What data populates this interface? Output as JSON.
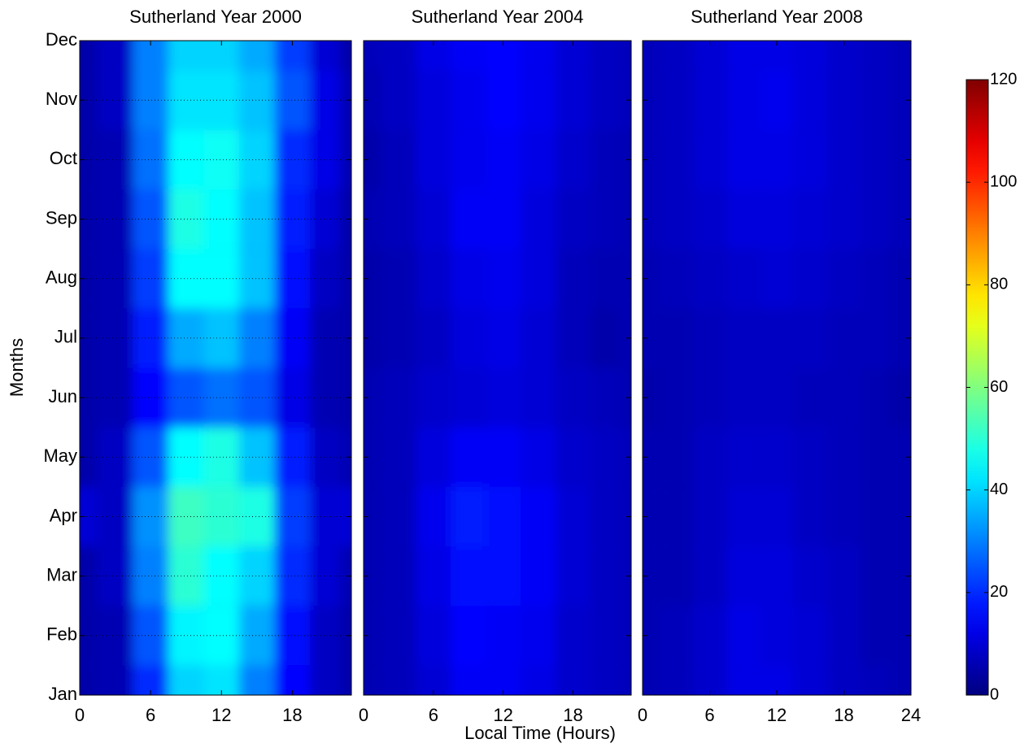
{
  "chart_data": {
    "type": "contour",
    "xlabel": "Local Time (Hours)",
    "ylabel": "Months",
    "x": [
      0,
      3,
      6,
      9,
      12,
      15,
      18,
      21,
      23
    ],
    "y": [
      "Jan",
      "Feb",
      "Mar",
      "Apr",
      "May",
      "Jun",
      "Jul",
      "Aug",
      "Sep",
      "Oct",
      "Nov",
      "Dec"
    ],
    "colormap": "jet",
    "zlim": [
      0,
      120
    ],
    "zticks": [
      0,
      20,
      40,
      60,
      80,
      100,
      120
    ],
    "grid": true,
    "panels": [
      {
        "title": "Sutherland Year 2000",
        "xlim": [
          0,
          23
        ],
        "xticks": [
          0,
          6,
          12,
          18
        ],
        "values": [
          [
            5,
            6,
            20,
            40,
            42,
            30,
            15,
            8,
            5
          ],
          [
            5,
            6,
            25,
            44,
            45,
            35,
            16,
            8,
            5
          ],
          [
            5,
            8,
            30,
            50,
            45,
            40,
            20,
            10,
            6
          ],
          [
            10,
            8,
            32,
            52,
            50,
            48,
            22,
            10,
            10
          ],
          [
            5,
            8,
            25,
            45,
            48,
            38,
            18,
            8,
            6
          ],
          [
            5,
            6,
            15,
            25,
            28,
            25,
            12,
            6,
            5
          ],
          [
            5,
            6,
            18,
            35,
            38,
            30,
            14,
            6,
            5
          ],
          [
            5,
            6,
            22,
            45,
            45,
            38,
            16,
            8,
            5
          ],
          [
            5,
            6,
            25,
            48,
            45,
            38,
            18,
            10,
            5
          ],
          [
            5,
            6,
            28,
            45,
            46,
            40,
            20,
            12,
            6
          ],
          [
            5,
            8,
            30,
            42,
            42,
            38,
            25,
            12,
            6
          ],
          [
            5,
            8,
            30,
            40,
            40,
            35,
            22,
            10,
            5
          ]
        ]
      },
      {
        "title": "Sutherland Year 2004",
        "xlim": [
          0,
          23
        ],
        "xticks": [
          0,
          6,
          12,
          18
        ],
        "values": [
          [
            6,
            7,
            10,
            14,
            14,
            12,
            9,
            8,
            7
          ],
          [
            6,
            7,
            11,
            15,
            14,
            13,
            9,
            8,
            7
          ],
          [
            6,
            7,
            12,
            17,
            16,
            14,
            10,
            8,
            7
          ],
          [
            6,
            7,
            13,
            18,
            17,
            14,
            10,
            8,
            7
          ],
          [
            6,
            7,
            11,
            14,
            14,
            12,
            9,
            8,
            7
          ],
          [
            6,
            7,
            9,
            10,
            11,
            10,
            8,
            7,
            6
          ],
          [
            5,
            6,
            8,
            11,
            12,
            10,
            7,
            5,
            6
          ],
          [
            5,
            6,
            9,
            12,
            13,
            11,
            7,
            6,
            6
          ],
          [
            6,
            7,
            10,
            14,
            14,
            11,
            8,
            7,
            6
          ],
          [
            5,
            7,
            11,
            13,
            14,
            12,
            9,
            7,
            6
          ],
          [
            6,
            8,
            11,
            13,
            15,
            13,
            10,
            8,
            7
          ],
          [
            7,
            8,
            12,
            14,
            15,
            13,
            10,
            8,
            7
          ]
        ]
      },
      {
        "title": "Sutherland Year 2008",
        "xlim": [
          0,
          24
        ],
        "xticks": [
          0,
          6,
          12,
          18,
          24
        ],
        "values": [
          [
            6,
            7,
            9,
            12,
            12,
            10,
            8,
            7,
            6
          ],
          [
            6,
            7,
            9,
            12,
            11,
            10,
            8,
            6,
            6
          ],
          [
            6,
            6,
            8,
            11,
            11,
            9,
            8,
            6,
            6
          ],
          [
            6,
            6,
            8,
            10,
            10,
            8,
            7,
            6,
            6
          ],
          [
            6,
            6,
            8,
            9,
            9,
            8,
            7,
            6,
            6
          ],
          [
            5,
            6,
            7,
            8,
            8,
            7,
            7,
            6,
            5
          ],
          [
            6,
            6,
            7,
            8,
            8,
            8,
            7,
            7,
            6
          ],
          [
            6,
            7,
            8,
            9,
            10,
            9,
            8,
            7,
            6
          ],
          [
            7,
            8,
            9,
            11,
            11,
            10,
            9,
            8,
            7
          ],
          [
            7,
            8,
            10,
            12,
            12,
            11,
            9,
            8,
            7
          ],
          [
            7,
            8,
            10,
            12,
            13,
            11,
            9,
            8,
            7
          ],
          [
            7,
            8,
            10,
            12,
            12,
            11,
            9,
            8,
            7
          ]
        ]
      }
    ]
  }
}
